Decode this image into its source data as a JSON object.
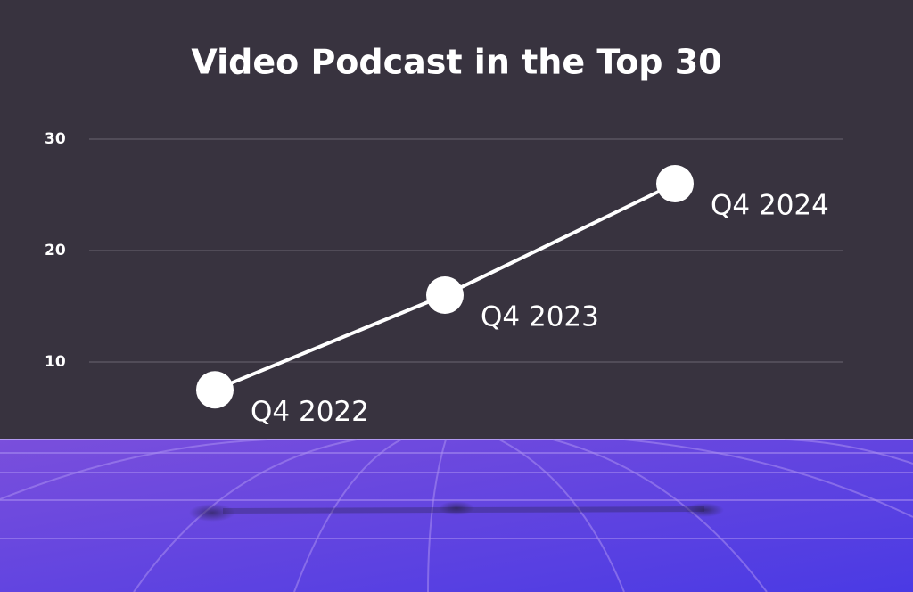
{
  "chart_data": {
    "type": "line",
    "title": "Video Podcast in the Top 30",
    "categories": [
      "Q4 2022",
      "Q4 2023",
      "Q4 2024"
    ],
    "values": [
      7.5,
      16,
      26
    ],
    "color": "#ffffff",
    "ylim": [
      0,
      30
    ],
    "yticks": [
      10,
      20,
      30
    ],
    "grid": true
  }
}
